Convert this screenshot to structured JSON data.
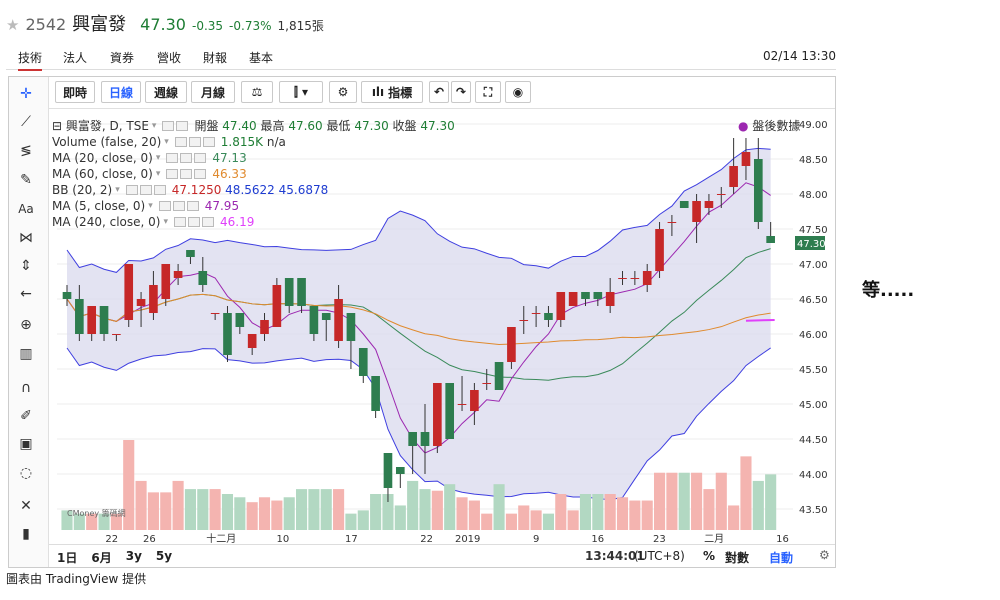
{
  "header": {
    "code": "2542",
    "name": "興富發",
    "price": "47.30",
    "change": "-0.35",
    "change_pct": "-0.73%",
    "volume": "1,815張"
  },
  "tabs": [
    "技術",
    "法人",
    "資券",
    "營收",
    "財報",
    "基本"
  ],
  "datetime": "02/14 13:30",
  "toolbar": {
    "intraday": "即時",
    "daily": "日線",
    "weekly": "週線",
    "monthly": "月線",
    "indicators": "指標"
  },
  "legend": {
    "symbol": "興富發, D, TSE",
    "open_label": "開盤",
    "open": "47.40",
    "high_label": "最高",
    "high": "47.60",
    "low_label": "最低",
    "low": "47.30",
    "close_label": "收盤",
    "close": "47.30",
    "volume": "Volume (false, 20)",
    "volume_val": "1.815K",
    "volume_val2": "n/a",
    "ma20": "MA (20, close, 0)",
    "ma20_val": "47.13",
    "ma60": "MA (60, close, 0)",
    "ma60_val": "46.33",
    "bb": "BB (20, 2)",
    "bb_mid": "47.1250",
    "bb_up": "48.5622",
    "bb_low": "45.6878",
    "ma5": "MA (5, close, 0)",
    "ma5_val": "47.95",
    "ma240": "MA (240, close, 0)",
    "ma240_val": "46.19"
  },
  "after_hours": "盤後數據",
  "price_axis": [
    "49.00",
    "48.50",
    "48.00",
    "47.50",
    "47.00",
    "46.50",
    "46.00",
    "45.50",
    "45.00",
    "44.50",
    "44.00",
    "43.50"
  ],
  "last_price_tag": "47.30",
  "date_axis": [
    "22",
    "26",
    "十二月",
    "10",
    "17",
    "22",
    "2019",
    "9",
    "16",
    "23",
    "二月",
    "16"
  ],
  "watermark": "CMoney 籌碼網",
  "bottom_bar": {
    "ranges": [
      "1日",
      "6月",
      "3y",
      "5y"
    ],
    "time": "13:44:01",
    "tz": "(UTC+8)",
    "percent": "%",
    "log": "對數",
    "auto": "自動"
  },
  "side_text": "等.....",
  "credit": "圖表由 TradingView 提供",
  "colors": {
    "up": "#c62828",
    "down": "#2e7d4f",
    "bb_fill": "#d9d9ee",
    "bb_line": "#3f3fe0",
    "ma5": "#9c27b0",
    "ma20": "#3a8a5a",
    "ma60": "#e08a2e",
    "ma240": "#e040fb",
    "vol_up": "#f4b4b0",
    "vol_down": "#b2d8c2"
  },
  "chart_data": {
    "type": "candlestick",
    "price_range": [
      43.2,
      49.2
    ],
    "candles": [
      {
        "o": 46.6,
        "h": 46.7,
        "l": 46.4,
        "c": 46.5
      },
      {
        "o": 46.5,
        "h": 46.7,
        "l": 45.9,
        "c": 46.0
      },
      {
        "o": 46.0,
        "h": 46.4,
        "l": 45.9,
        "c": 46.4
      },
      {
        "o": 46.4,
        "h": 46.4,
        "l": 45.9,
        "c": 46.0
      },
      {
        "o": 46.0,
        "h": 46.0,
        "l": 45.9,
        "c": 46.0
      },
      {
        "o": 46.2,
        "h": 47.0,
        "l": 46.1,
        "c": 47.0
      },
      {
        "o": 46.4,
        "h": 46.6,
        "l": 46.1,
        "c": 46.5
      },
      {
        "o": 46.3,
        "h": 46.9,
        "l": 46.2,
        "c": 46.7
      },
      {
        "o": 46.5,
        "h": 47.0,
        "l": 46.4,
        "c": 47.0
      },
      {
        "o": 46.8,
        "h": 47.0,
        "l": 46.7,
        "c": 46.9
      },
      {
        "o": 47.2,
        "h": 47.2,
        "l": 47.0,
        "c": 47.1
      },
      {
        "o": 46.9,
        "h": 47.1,
        "l": 46.6,
        "c": 46.7
      },
      {
        "o": 46.3,
        "h": 46.3,
        "l": 46.2,
        "c": 46.3
      },
      {
        "o": 46.3,
        "h": 46.4,
        "l": 45.6,
        "c": 45.7
      },
      {
        "o": 46.3,
        "h": 46.3,
        "l": 46.0,
        "c": 46.1
      },
      {
        "o": 45.8,
        "h": 46.0,
        "l": 45.7,
        "c": 46.0
      },
      {
        "o": 46.0,
        "h": 46.3,
        "l": 45.9,
        "c": 46.2
      },
      {
        "o": 46.1,
        "h": 46.8,
        "l": 46.1,
        "c": 46.7
      },
      {
        "o": 46.8,
        "h": 46.8,
        "l": 46.3,
        "c": 46.4
      },
      {
        "o": 46.8,
        "h": 46.8,
        "l": 46.3,
        "c": 46.4
      },
      {
        "o": 46.4,
        "h": 46.4,
        "l": 45.9,
        "c": 46.0
      },
      {
        "o": 46.3,
        "h": 46.3,
        "l": 45.9,
        "c": 46.2
      },
      {
        "o": 45.9,
        "h": 46.7,
        "l": 45.8,
        "c": 46.5
      },
      {
        "o": 46.3,
        "h": 46.3,
        "l": 45.5,
        "c": 45.9
      },
      {
        "o": 45.8,
        "h": 45.8,
        "l": 45.3,
        "c": 45.4
      },
      {
        "o": 45.4,
        "h": 45.4,
        "l": 44.8,
        "c": 44.9
      },
      {
        "o": 44.3,
        "h": 44.3,
        "l": 43.6,
        "c": 43.8
      },
      {
        "o": 44.1,
        "h": 44.1,
        "l": 43.8,
        "c": 44.0
      },
      {
        "o": 44.6,
        "h": 44.6,
        "l": 44.0,
        "c": 44.4
      },
      {
        "o": 44.6,
        "h": 45.0,
        "l": 44.0,
        "c": 44.4
      },
      {
        "o": 44.4,
        "h": 45.3,
        "l": 44.3,
        "c": 45.3
      },
      {
        "o": 45.3,
        "h": 45.3,
        "l": 44.5,
        "c": 44.5
      },
      {
        "o": 45.0,
        "h": 45.4,
        "l": 44.9,
        "c": 45.0
      },
      {
        "o": 44.9,
        "h": 45.3,
        "l": 44.7,
        "c": 45.2
      },
      {
        "o": 45.3,
        "h": 45.5,
        "l": 45.2,
        "c": 45.3
      },
      {
        "o": 45.6,
        "h": 45.6,
        "l": 45.2,
        "c": 45.2
      },
      {
        "o": 45.6,
        "h": 46.1,
        "l": 45.5,
        "c": 46.1
      },
      {
        "o": 46.2,
        "h": 46.4,
        "l": 46.0,
        "c": 46.2
      },
      {
        "o": 46.3,
        "h": 46.4,
        "l": 46.1,
        "c": 46.3
      },
      {
        "o": 46.3,
        "h": 46.4,
        "l": 46.1,
        "c": 46.2
      },
      {
        "o": 46.2,
        "h": 46.6,
        "l": 46.1,
        "c": 46.6
      },
      {
        "o": 46.4,
        "h": 46.6,
        "l": 46.4,
        "c": 46.6
      },
      {
        "o": 46.6,
        "h": 46.6,
        "l": 46.4,
        "c": 46.5
      },
      {
        "o": 46.6,
        "h": 46.6,
        "l": 46.4,
        "c": 46.5
      },
      {
        "o": 46.4,
        "h": 46.8,
        "l": 46.3,
        "c": 46.6
      },
      {
        "o": 46.8,
        "h": 46.9,
        "l": 46.7,
        "c": 46.8
      },
      {
        "o": 46.8,
        "h": 46.9,
        "l": 46.7,
        "c": 46.8
      },
      {
        "o": 46.7,
        "h": 47.0,
        "l": 46.6,
        "c": 46.9
      },
      {
        "o": 46.9,
        "h": 47.6,
        "l": 46.8,
        "c": 47.5
      },
      {
        "o": 47.6,
        "h": 47.7,
        "l": 47.4,
        "c": 47.6
      },
      {
        "o": 47.9,
        "h": 47.9,
        "l": 47.8,
        "c": 47.8
      },
      {
        "o": 47.6,
        "h": 48.0,
        "l": 47.3,
        "c": 47.9
      },
      {
        "o": 47.8,
        "h": 48.0,
        "l": 47.7,
        "c": 47.9
      },
      {
        "o": 48.0,
        "h": 48.1,
        "l": 47.8,
        "c": 48.0
      },
      {
        "o": 48.1,
        "h": 48.8,
        "l": 48.0,
        "c": 48.4
      },
      {
        "o": 48.4,
        "h": 48.8,
        "l": 48.2,
        "c": 48.6
      },
      {
        "o": 48.5,
        "h": 48.8,
        "l": 47.5,
        "c": 47.6
      },
      {
        "o": 47.4,
        "h": 47.6,
        "l": 47.3,
        "c": 47.3
      }
    ],
    "volumes": [
      12,
      10,
      10,
      10,
      10,
      55,
      30,
      23,
      23,
      30,
      25,
      25,
      25,
      22,
      20,
      17,
      20,
      18,
      20,
      25,
      25,
      25,
      25,
      10,
      12,
      22,
      22,
      15,
      30,
      25,
      24,
      28,
      20,
      18,
      10,
      28,
      10,
      15,
      12,
      10,
      22,
      12,
      22,
      22,
      22,
      20,
      18,
      18,
      35,
      35,
      35,
      35,
      25,
      35,
      15,
      45,
      30,
      34
    ]
  }
}
